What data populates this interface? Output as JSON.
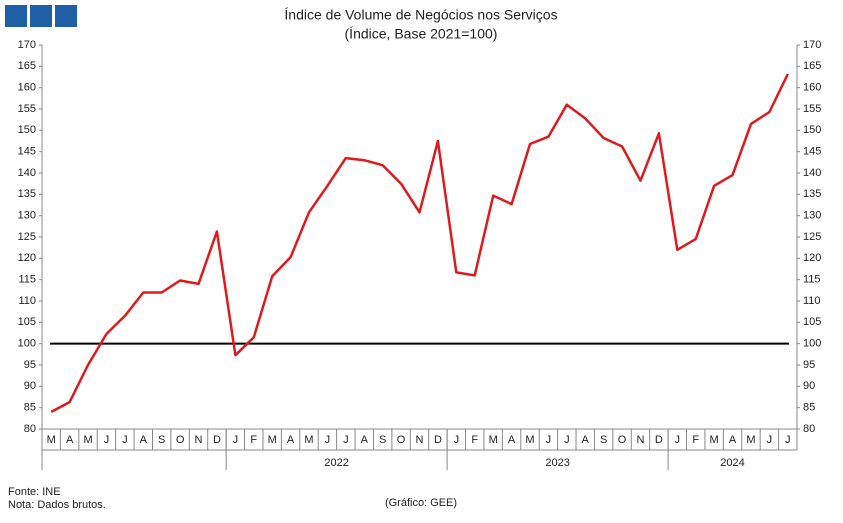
{
  "chart_data": {
    "type": "line",
    "title": "Índice de Volume de Negócios nos Serviços",
    "subtitle": "(Índice, Base 2021=100)",
    "categories": [
      "M",
      "A",
      "M",
      "J",
      "J",
      "A",
      "S",
      "O",
      "N",
      "D",
      "J",
      "F",
      "M",
      "A",
      "M",
      "J",
      "J",
      "A",
      "S",
      "O",
      "N",
      "D",
      "J",
      "F",
      "M",
      "A",
      "M",
      "J",
      "J",
      "A",
      "S",
      "O",
      "N",
      "D",
      "J",
      "F",
      "M",
      "A",
      "M",
      "J",
      "J"
    ],
    "years": [
      "2022",
      "2023",
      "2024"
    ],
    "series": [
      {
        "color": "#e0191f",
        "values": [
          84,
          86.3,
          95,
          102.3,
          106.5,
          112,
          112,
          114.8,
          114,
          126.3,
          97.3,
          101.5,
          115.8,
          120.3,
          130.8,
          137,
          143.5,
          143,
          141.8,
          137.5,
          130.8,
          147.5,
          116.7,
          116,
          134.7,
          132.7,
          146.8,
          148.5,
          156,
          152.8,
          148.2,
          146.2,
          138.2,
          149.3,
          122,
          124.5,
          137,
          139.5,
          151.5,
          154.3,
          163.2
        ]
      }
    ],
    "reference_line": {
      "value": 100,
      "color": "#000000"
    },
    "ylim": [
      80,
      170
    ],
    "yticks": [
      80,
      85,
      90,
      95,
      100,
      105,
      110,
      115,
      120,
      125,
      130,
      135,
      140,
      145,
      150,
      155,
      160,
      165,
      170
    ],
    "source": "Fonte: INE",
    "note": "Nota: Dados brutos.",
    "credit": "(Gráfico: GEE)"
  }
}
